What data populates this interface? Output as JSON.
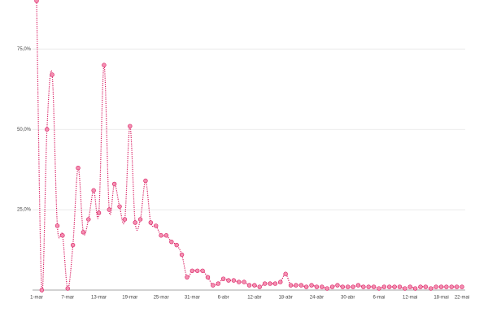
{
  "chart_data": {
    "type": "line",
    "categories": [
      "1-mar",
      null,
      null,
      null,
      null,
      null,
      "7-mar",
      null,
      null,
      null,
      null,
      null,
      "13-mar",
      null,
      null,
      null,
      null,
      null,
      "19-mar",
      null,
      null,
      null,
      null,
      null,
      "25-mar",
      null,
      null,
      null,
      null,
      null,
      "31-mar",
      null,
      null,
      null,
      null,
      null,
      "6-abr",
      null,
      null,
      null,
      null,
      null,
      "12-abr",
      null,
      null,
      null,
      null,
      null,
      "18-abr",
      null,
      null,
      null,
      null,
      null,
      "24-abr",
      null,
      null,
      null,
      null,
      null,
      "30-abr",
      null,
      null,
      null,
      null,
      null,
      "6-mai",
      null,
      null,
      null,
      null,
      null,
      "12-mai",
      null,
      null,
      null,
      null,
      null,
      "18-mai",
      null,
      null,
      null,
      "22-mai"
    ],
    "series": [
      {
        "color": "#d81b60",
        "values": [
          90,
          0,
          50,
          67,
          20,
          17,
          0.5,
          14,
          38,
          18,
          22,
          31,
          24,
          70,
          25,
          33,
          26,
          22,
          51,
          21,
          22,
          34,
          21,
          20,
          17,
          17,
          15,
          14,
          11,
          4,
          6,
          6,
          6,
          4,
          1.5,
          2,
          3.5,
          3,
          3,
          2.5,
          2.5,
          1.5,
          1.5,
          1,
          2,
          2,
          2,
          2.5,
          5,
          1.5,
          1.5,
          1.5,
          1,
          1.5,
          1,
          1,
          0.5,
          1,
          1.5,
          1,
          1,
          1,
          1.5,
          1,
          1,
          1,
          0.5,
          1,
          1,
          1,
          1,
          0.5,
          1,
          0.5,
          1,
          1,
          0.5,
          1,
          1,
          1,
          1,
          1,
          1
        ]
      }
    ],
    "ylim": [
      0,
      90
    ],
    "yticks": [
      {
        "value": 25,
        "label": "25,0%"
      },
      {
        "value": 50,
        "label": "50,0%"
      },
      {
        "value": 75,
        "label": "75,0%"
      }
    ],
    "grid": true
  }
}
